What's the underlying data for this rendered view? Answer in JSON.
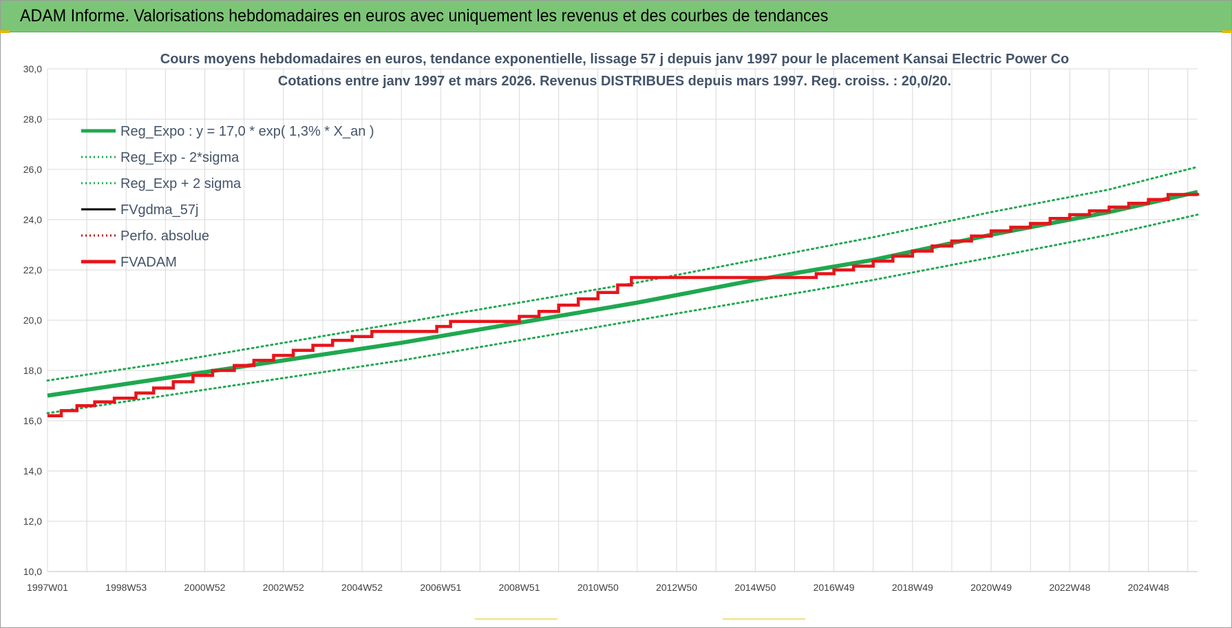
{
  "banner": {
    "title": "ADAM Informe. Valorisations hebdomadaires en euros avec uniquement les revenus et des courbes de tendances"
  },
  "colors": {
    "banner_bg": "#7cc576",
    "trend_green": "#1fa84f",
    "fvadam_red": "#e8141a",
    "gdma_black": "#000000",
    "perfo_red": "#c00000",
    "title_color": "#44546a",
    "grid": "#d9d9d9"
  },
  "chart_data": {
    "type": "line",
    "title_line1": "Cours moyens hebdomadaires en euros, tendance exponentielle, lissage 57 j depuis janv 1997  pour le placement Kansai Electric Power Co",
    "title_line2": "Cotations entre janv 1997 et mars 2026. Revenus DISTRIBUES depuis mars 1997. Reg. croiss. : 20,0/20.",
    "ylim": [
      10,
      30
    ],
    "xlim": [
      1997.0,
      2026.25
    ],
    "y_ticks": [
      "10,0",
      "12,0",
      "14,0",
      "16,0",
      "18,0",
      "20,0",
      "22,0",
      "24,0",
      "26,0",
      "28,0",
      "30,0"
    ],
    "x_tick_labels": [
      "1997W01",
      "1998W53",
      "2000W52",
      "2002W52",
      "2004W52",
      "2006W51",
      "2008W51",
      "2010W50",
      "2012W50",
      "2014W50",
      "2016W49",
      "2018W49",
      "2020W49",
      "2022W48",
      "2024W48"
    ],
    "x_tick_years": [
      1997.0,
      1999.0,
      2001.0,
      2003.0,
      2005.0,
      2007.0,
      2009.0,
      2011.0,
      2013.0,
      2015.0,
      2017.0,
      2019.0,
      2021.0,
      2023.0,
      2025.0
    ],
    "grid": true,
    "legend_position": "top-left",
    "legend": [
      {
        "label": "Reg_Expo : y = 17,0 * exp( 1,3% *  X_an )",
        "style": "solid-thick",
        "color": "#1fa84f"
      },
      {
        "label": "Reg_Exp - 2*sigma",
        "style": "dotted",
        "color": "#1fa84f"
      },
      {
        "label": "Reg_Exp + 2 sigma",
        "style": "dotted",
        "color": "#1fa84f"
      },
      {
        "label": "FVgdma_57j",
        "style": "solid",
        "color": "#000000"
      },
      {
        "label": "Perfo. absolue",
        "style": "dotted",
        "color": "#c00000"
      },
      {
        "label": "FVADAM",
        "style": "solid-thick",
        "color": "#e8141a"
      }
    ],
    "series": [
      {
        "name": "Reg_Expo : y = 17,0 * exp( 1,3% *  X_an )",
        "x": [
          1997,
          2000,
          2003,
          2006,
          2009,
          2012,
          2015,
          2018,
          2021,
          2024,
          2026.25
        ],
        "y": [
          17.0,
          17.7,
          18.4,
          19.1,
          19.9,
          20.7,
          21.6,
          22.4,
          23.4,
          24.3,
          25.1
        ]
      },
      {
        "name": "Reg_Exp - 2*sigma",
        "x": [
          1997,
          2000,
          2003,
          2006,
          2009,
          2012,
          2015,
          2018,
          2021,
          2024,
          2026.25
        ],
        "y": [
          16.3,
          17.0,
          17.7,
          18.4,
          19.2,
          20.0,
          20.8,
          21.6,
          22.5,
          23.4,
          24.2
        ]
      },
      {
        "name": "Reg_Exp + 2 sigma",
        "x": [
          1997,
          2000,
          2003,
          2006,
          2009,
          2012,
          2015,
          2018,
          2021,
          2024,
          2026.25
        ],
        "y": [
          17.6,
          18.3,
          19.1,
          19.9,
          20.7,
          21.5,
          22.4,
          23.3,
          24.3,
          25.2,
          26.1
        ]
      },
      {
        "name": "FVADAM",
        "x": [
          1997.0,
          1997.35,
          1997.75,
          1998.2,
          1998.7,
          1999.25,
          1999.7,
          2000.2,
          2000.7,
          2001.2,
          2001.75,
          2002.25,
          2002.75,
          2003.25,
          2003.75,
          2004.25,
          2004.75,
          2005.25,
          2006.9,
          2007.25,
          2008.5,
          2009.0,
          2009.5,
          2010.0,
          2010.5,
          2011.0,
          2011.5,
          2011.85,
          2016.2,
          2016.55,
          2017.0,
          2017.5,
          2018.0,
          2018.5,
          2019.0,
          2019.5,
          2020.0,
          2020.5,
          2021.0,
          2021.5,
          2022.0,
          2022.5,
          2023.0,
          2023.5,
          2024.0,
          2024.5,
          2025.0,
          2025.5,
          2026.25
        ],
        "y": [
          16.2,
          16.4,
          16.6,
          16.75,
          16.9,
          17.1,
          17.3,
          17.55,
          17.8,
          18.0,
          18.2,
          18.4,
          18.6,
          18.8,
          19.0,
          19.2,
          19.35,
          19.55,
          19.75,
          19.95,
          19.95,
          20.15,
          20.35,
          20.6,
          20.85,
          21.1,
          21.4,
          21.7,
          21.7,
          21.85,
          22.0,
          22.15,
          22.35,
          22.55,
          22.75,
          22.95,
          23.15,
          23.35,
          23.55,
          23.7,
          23.85,
          24.05,
          24.2,
          24.35,
          24.5,
          24.65,
          24.8,
          25.0,
          24.95
        ]
      }
    ]
  }
}
